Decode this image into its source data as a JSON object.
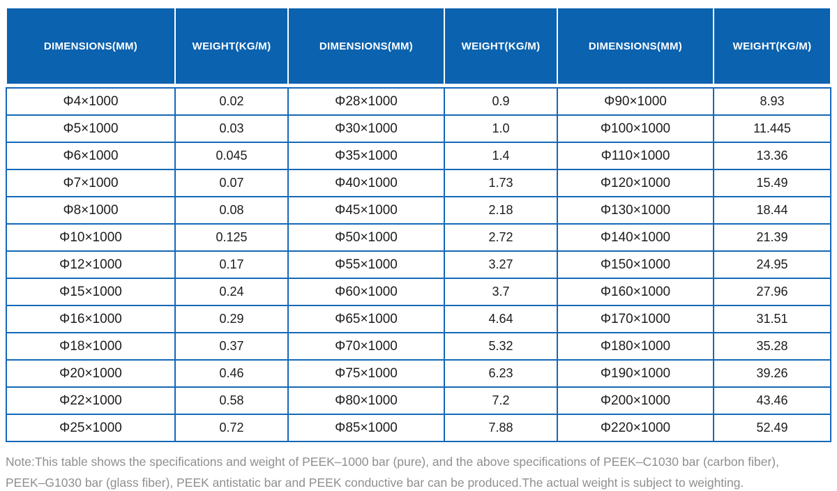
{
  "table": {
    "headers": [
      "DIMENSIONS(MM)",
      "WEIGHT(KG/M)",
      "DIMENSIONS(MM)",
      "WEIGHT(KG/M)",
      "DIMENSIONS(MM)",
      "WEIGHT(KG/M)"
    ],
    "rows": [
      [
        "Φ4×1000",
        "0.02",
        "Φ28×1000",
        "0.9",
        "Φ90×1000",
        "8.93"
      ],
      [
        "Φ5×1000",
        "0.03",
        "Φ30×1000",
        "1.0",
        "Φ100×1000",
        "11.445"
      ],
      [
        "Φ6×1000",
        "0.045",
        "Φ35×1000",
        "1.4",
        "Φ110×1000",
        "13.36"
      ],
      [
        "Φ7×1000",
        "0.07",
        "Φ40×1000",
        "1.73",
        "Φ120×1000",
        "15.49"
      ],
      [
        "Φ8×1000",
        "0.08",
        "Φ45×1000",
        "2.18",
        "Φ130×1000",
        "18.44"
      ],
      [
        "Φ10×1000",
        "0.125",
        "Φ50×1000",
        "2.72",
        "Φ140×1000",
        "21.39"
      ],
      [
        "Φ12×1000",
        "0.17",
        "Φ55×1000",
        "3.27",
        "Φ150×1000",
        "24.95"
      ],
      [
        "Φ15×1000",
        "0.24",
        "Φ60×1000",
        "3.7",
        "Φ160×1000",
        "27.96"
      ],
      [
        "Φ16×1000",
        "0.29",
        "Φ65×1000",
        "4.64",
        "Φ170×1000",
        "31.51"
      ],
      [
        "Φ18×1000",
        "0.37",
        "Φ70×1000",
        "5.32",
        "Φ180×1000",
        "35.28"
      ],
      [
        "Φ20×1000",
        "0.46",
        "Φ75×1000",
        "6.23",
        "Φ190×1000",
        "39.26"
      ],
      [
        "Φ22×1000",
        "0.58",
        "Φ80×1000",
        "7.2",
        "Φ200×1000",
        "43.46"
      ],
      [
        "Φ25×1000",
        "0.72",
        "Φ85×1000",
        "7.88",
        "Φ220×1000",
        "52.49"
      ]
    ]
  },
  "note": {
    "line1": "Note:This table shows the specifications and weight of PEEK–1000 bar (pure), and the above specifications of PEEK–C1030 bar (carbon fiber),",
    "line2": "PEEK–G1030 bar (glass fiber), PEEK antistatic bar and PEEK conductive bar can be produced.The actual weight is subject to weighting."
  },
  "colors": {
    "header_bg": "#0b62ae",
    "grid_border": "#1368b7",
    "body_text": "#1c1c1c",
    "note_text": "#8f8f8f"
  }
}
